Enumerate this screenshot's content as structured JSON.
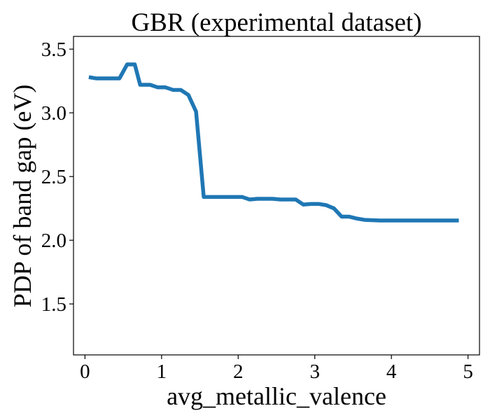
{
  "chart_data": {
    "type": "line",
    "title": "GBR (experimental dataset)",
    "xlabel": "avg_metallic_valence",
    "ylabel": "PDP of band gap (eV)",
    "xlim": [
      -0.15,
      5.15
    ],
    "ylim": [
      1.1,
      3.6
    ],
    "xticks": [
      0,
      1,
      2,
      3,
      4,
      5
    ],
    "xtick_labels": [
      "0",
      "1",
      "2",
      "3",
      "4",
      "5"
    ],
    "yticks": [
      1.5,
      2.0,
      2.5,
      3.0,
      3.5
    ],
    "ytick_labels": [
      "1.5",
      "2.0",
      "2.5",
      "3.0",
      "3.5"
    ],
    "grid": false,
    "series": [
      {
        "color": "#1f77b4",
        "x": [
          0.05,
          0.15,
          0.45,
          0.55,
          0.65,
          0.72,
          0.85,
          0.95,
          1.05,
          1.15,
          1.25,
          1.35,
          1.45,
          1.55,
          1.75,
          2.05,
          2.15,
          2.25,
          2.45,
          2.55,
          2.75,
          2.85,
          2.95,
          3.05,
          3.15,
          3.25,
          3.35,
          3.45,
          3.55,
          3.65,
          3.85,
          4.05,
          4.88
        ],
        "y": [
          3.28,
          3.27,
          3.27,
          3.38,
          3.38,
          3.22,
          3.22,
          3.2,
          3.2,
          3.18,
          3.18,
          3.14,
          3.01,
          2.34,
          2.34,
          2.34,
          2.32,
          2.325,
          2.325,
          2.32,
          2.32,
          2.28,
          2.285,
          2.285,
          2.275,
          2.25,
          2.185,
          2.185,
          2.17,
          2.16,
          2.155,
          2.155,
          2.155
        ]
      }
    ]
  }
}
